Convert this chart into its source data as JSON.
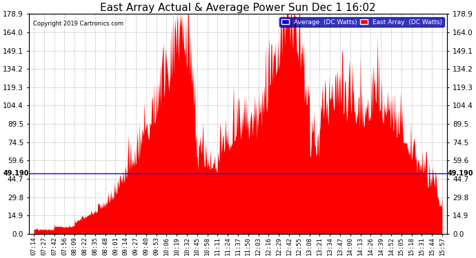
{
  "title": "East Array Actual & Average Power Sun Dec 1 16:02",
  "copyright": "Copyright 2019 Cartronics.com",
  "average_value": 49.19,
  "y_ticks": [
    0.0,
    14.9,
    29.8,
    44.7,
    59.6,
    74.5,
    89.5,
    104.4,
    119.3,
    134.2,
    149.1,
    164.0,
    178.9
  ],
  "ylim": [
    0.0,
    178.9
  ],
  "x_labels": [
    "07:14",
    "07:27",
    "07:42",
    "07:56",
    "08:09",
    "08:22",
    "08:35",
    "08:48",
    "09:01",
    "09:14",
    "09:27",
    "09:40",
    "09:53",
    "10:06",
    "10:19",
    "10:32",
    "10:45",
    "10:58",
    "11:11",
    "11:24",
    "11:37",
    "11:50",
    "12:03",
    "12:16",
    "12:29",
    "12:42",
    "12:55",
    "13:08",
    "13:21",
    "13:34",
    "13:47",
    "14:00",
    "14:13",
    "14:26",
    "14:39",
    "14:52",
    "15:05",
    "15:18",
    "15:31",
    "15:44",
    "15:57"
  ],
  "area_color": "#FF0000",
  "average_line_color": "#0000FF",
  "background_color": "#FFFFFF",
  "grid_color": "#AAAAAA",
  "title_fontsize": 11,
  "tick_fontsize": 7.5,
  "legend_avg_color": "#0000CC",
  "legend_east_color": "#FF0000",
  "avg_line_annotation": "49.190"
}
